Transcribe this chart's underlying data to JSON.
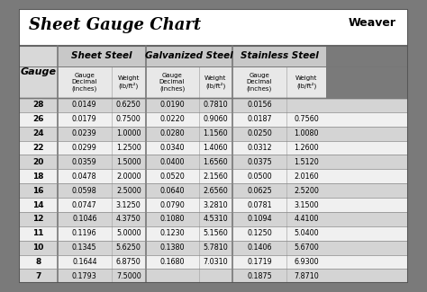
{
  "title": "Sheet Gauge Chart",
  "bg_outer": "#7a7a7a",
  "bg_white": "#ffffff",
  "hdr1_bg": "#c8c8c8",
  "hdr2_bg": "#e0e0e0",
  "row_bg_dark": "#d4d4d4",
  "row_bg_light": "#f0f0f0",
  "line_color": "#888888",
  "gauges": [
    28,
    26,
    24,
    22,
    20,
    18,
    16,
    14,
    12,
    11,
    10,
    8,
    7
  ],
  "sheet_steel_dec": [
    "0.0149",
    "0.0179",
    "0.0239",
    "0.0299",
    "0.0359",
    "0.0478",
    "0.0598",
    "0.0747",
    "0.1046",
    "0.1196",
    "0.1345",
    "0.1644",
    "0.1793"
  ],
  "sheet_steel_wt": [
    "0.6250",
    "0.7500",
    "1.0000",
    "1.2500",
    "1.5000",
    "2.0000",
    "2.5000",
    "3.1250",
    "4.3750",
    "5.0000",
    "5.6250",
    "6.8750",
    "7.5000"
  ],
  "galv_dec": [
    "0.0190",
    "0.0220",
    "0.0280",
    "0.0340",
    "0.0400",
    "0.0520",
    "0.0640",
    "0.0790",
    "0.1080",
    "0.1230",
    "0.1380",
    "0.1680",
    ""
  ],
  "galv_wt": [
    "0.7810",
    "0.9060",
    "1.1560",
    "1.4060",
    "1.6560",
    "2.1560",
    "2.6560",
    "3.2810",
    "4.5310",
    "5.1560",
    "5.7810",
    "7.0310",
    ""
  ],
  "stainless_dec": [
    "0.0156",
    "0.0187",
    "0.0250",
    "0.0312",
    "0.0375",
    "0.0500",
    "0.0625",
    "0.0781",
    "0.1094",
    "0.1250",
    "0.1406",
    "0.1719",
    "0.1875"
  ],
  "stainless_wt": [
    "",
    "0.7560",
    "1.0080",
    "1.2600",
    "1.5120",
    "2.0160",
    "2.5200",
    "3.1500",
    "4.4100",
    "5.0400",
    "5.6700",
    "6.9300",
    "7.8710"
  ],
  "col_group_labels": [
    "Sheet Steel",
    "Galvanized Steel",
    "Stainless Steel"
  ],
  "weaver_text": "Weaver"
}
